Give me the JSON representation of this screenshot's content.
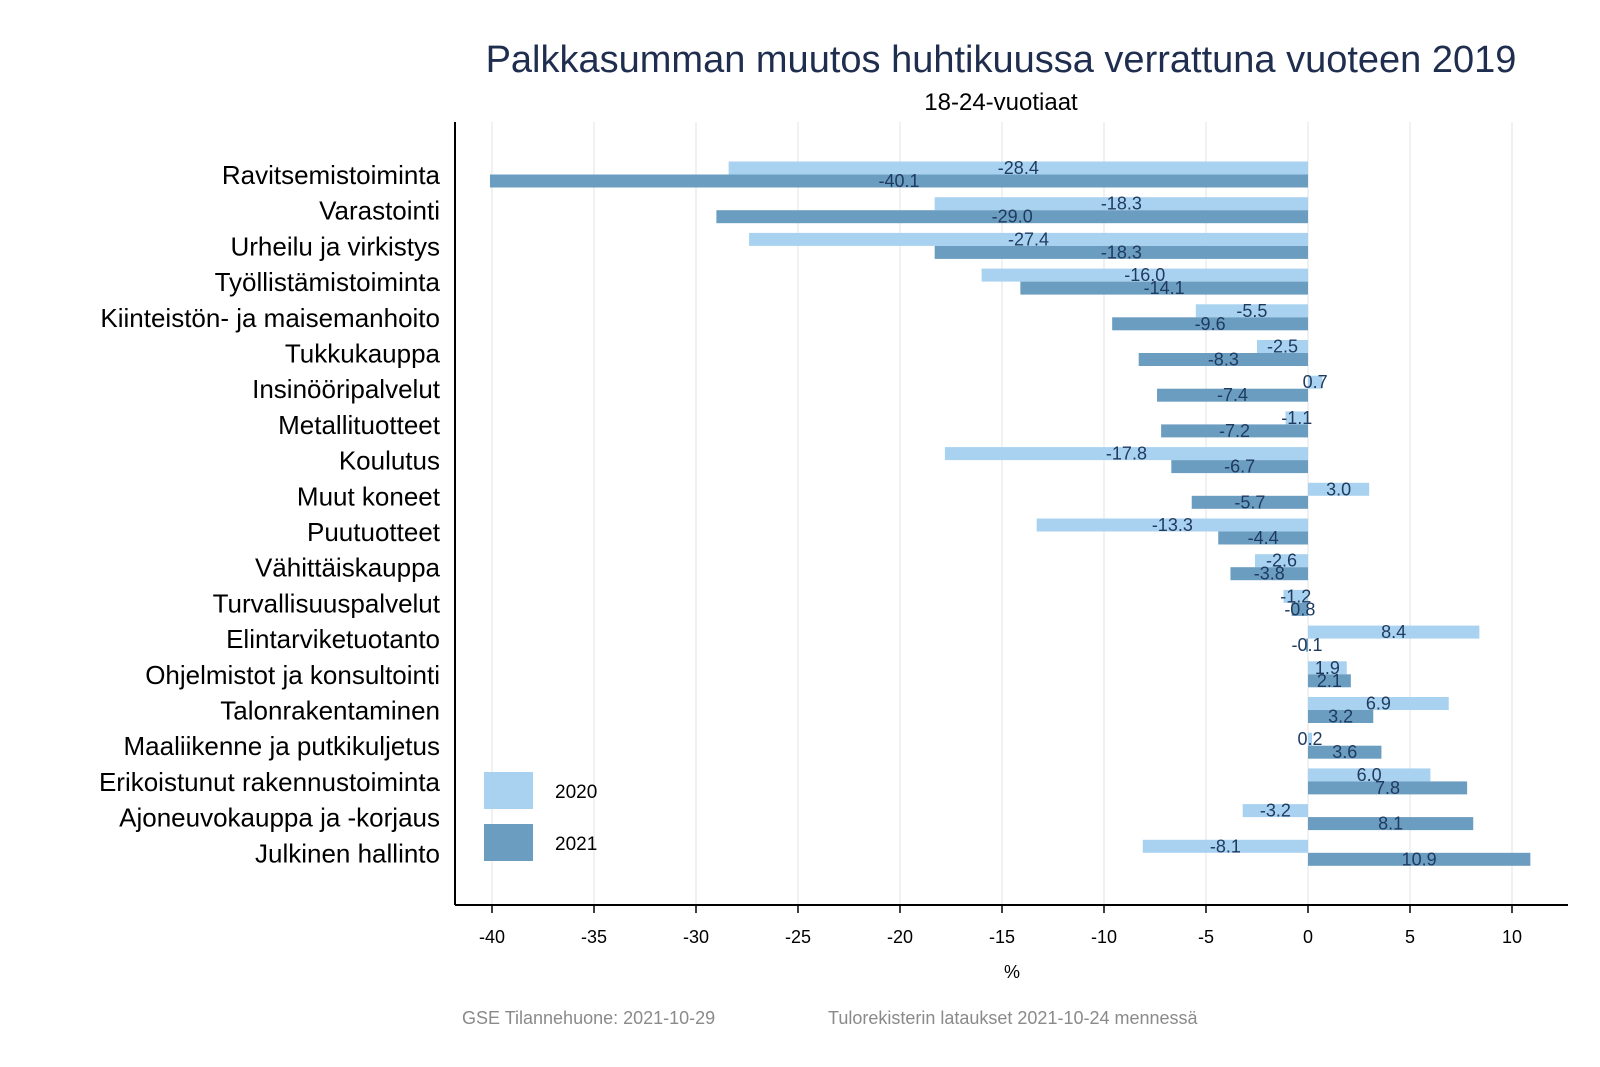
{
  "chart_data": {
    "type": "bar",
    "orientation": "horizontal",
    "title": "Palkkasumman muutos huhtikuussa verrattuna vuoteen 2019",
    "subtitle": "18-24-vuotiaat",
    "xlabel": "%",
    "ylabel": "",
    "xlim": [
      -42,
      13
    ],
    "xticks": [
      -40,
      -35,
      -30,
      -25,
      -20,
      -15,
      -10,
      -5,
      0,
      5,
      10
    ],
    "xtick_labels": [
      "-40",
      "-35",
      "-30",
      "-25",
      "-20",
      "-15",
      "-10",
      "-5",
      "0",
      "5",
      "10"
    ],
    "grid": "vertical",
    "legend_position": "bottom-left",
    "categories": [
      "Ravitsemistoiminta",
      "Varastointi",
      "Urheilu ja virkistys",
      "Työllistämistoiminta",
      "Kiinteistön- ja maisemanhoito",
      "Tukkukauppa",
      "Insinööripalvelut",
      "Metallituotteet",
      "Koulutus",
      "Muut koneet",
      "Puutuotteet",
      "Vähittäiskauppa",
      "Turvallisuuspalvelut",
      "Elintarviketuotanto",
      "Ohjelmistot ja konsultointi",
      "Talonrakentaminen",
      "Maaliikenne ja putkikuljetus",
      "Erikoistunut rakennustoiminta",
      "Ajoneuvokauppa ja -korjaus",
      "Julkinen hallinto"
    ],
    "series": [
      {
        "name": "2020",
        "color": "#a9d2f0",
        "values": [
          -28.4,
          -18.3,
          -27.4,
          -16.0,
          -5.5,
          -2.5,
          0.7,
          -1.1,
          -17.8,
          3.0,
          -13.3,
          -2.6,
          -1.2,
          8.4,
          1.9,
          6.9,
          0.2,
          6.0,
          -3.2,
          -8.1
        ],
        "labels": [
          "-28.4",
          "-18.3",
          "-27.4",
          "-16.0",
          "-5.5",
          "-2.5",
          "0.7",
          "-1.1",
          "-17.8",
          "3.0",
          "-13.3",
          "-2.6",
          "-1.2",
          "8.4",
          "1.9",
          "6.9",
          "0.2",
          "6.0",
          "-3.2",
          "-8.1"
        ]
      },
      {
        "name": "2021",
        "color": "#6b9dc0",
        "values": [
          -40.1,
          -29.0,
          -18.3,
          -14.1,
          -9.6,
          -8.3,
          -7.4,
          -7.2,
          -6.7,
          -5.7,
          -4.4,
          -3.8,
          -0.8,
          -0.1,
          2.1,
          3.2,
          3.6,
          7.8,
          8.1,
          10.9
        ],
        "labels": [
          "-40.1",
          "-29.0",
          "-18.3",
          "-14.1",
          "-9.6",
          "-8.3",
          "-7.4",
          "-7.2",
          "-6.7",
          "-5.7",
          "-4.4",
          "-3.8",
          "-0.8",
          "-0.1",
          "2.1",
          "3.2",
          "3.6",
          "7.8",
          "8.1",
          "10.9"
        ]
      }
    ]
  },
  "footer": {
    "source": "GSE Tilannehuone: 2021-10-29",
    "note": "Tulorekisterin lataukset 2021-10-24 mennessä"
  }
}
